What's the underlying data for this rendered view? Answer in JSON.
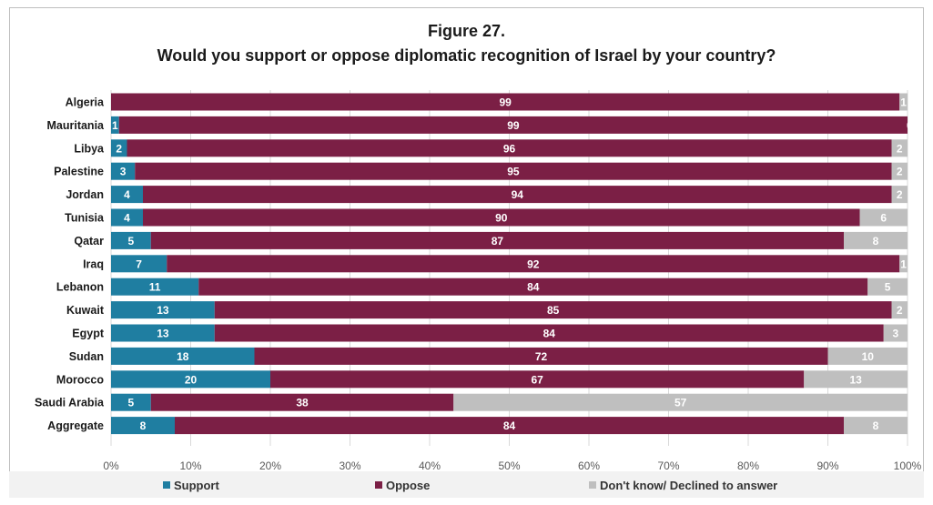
{
  "chart_data": {
    "type": "bar",
    "stacked": true,
    "orientation": "horizontal",
    "title": "Figure 27.",
    "subtitle": "Would you support or oppose diplomatic recognition of Israel by your country?",
    "categories": [
      "Algeria",
      "Mauritania",
      "Libya",
      "Palestine",
      "Jordan",
      "Tunisia",
      "Qatar",
      "Iraq",
      "Lebanon",
      "Kuwait",
      "Egypt",
      "Sudan",
      "Morocco",
      "Saudi Arabia",
      "Aggregate"
    ],
    "series": [
      {
        "name": "Support",
        "color": "#1f7ea1",
        "values": [
          0,
          1,
          2,
          3,
          4,
          4,
          5,
          7,
          11,
          13,
          13,
          18,
          20,
          5,
          8
        ]
      },
      {
        "name": "Oppose",
        "color": "#7b1f45",
        "values": [
          99,
          99,
          96,
          95,
          94,
          90,
          87,
          92,
          84,
          85,
          84,
          72,
          67,
          38,
          84
        ]
      },
      {
        "name": "Don't know/ Declined to answer",
        "color": "#bfbfbf",
        "values": [
          1,
          0,
          2,
          2,
          2,
          6,
          8,
          1,
          5,
          2,
          3,
          10,
          13,
          57,
          8
        ]
      }
    ],
    "xlim": [
      0,
      100
    ],
    "x_ticks": [
      "0%",
      "10%",
      "20%",
      "30%",
      "40%",
      "50%",
      "60%",
      "70%",
      "80%",
      "90%",
      "100%"
    ],
    "grid": true,
    "legend_position": "bottom"
  }
}
